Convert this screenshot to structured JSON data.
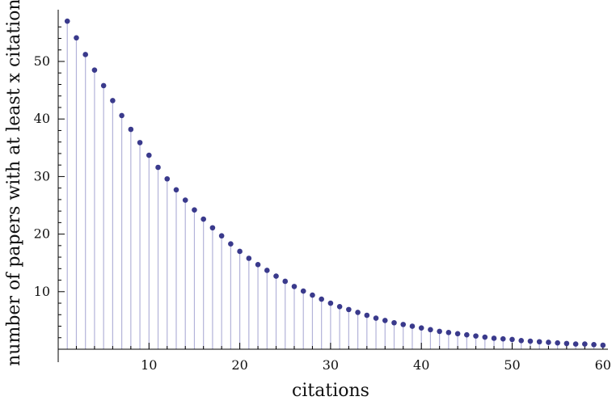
{
  "chart_data": {
    "type": "scatter",
    "style": "stem plot (filled points with vertical drop lines to the x-axis)",
    "title": "",
    "xlabel": "citations",
    "ylabel": "number of papers with at least x citations",
    "xlim": [
      0,
      60
    ],
    "ylim": [
      0,
      58
    ],
    "x_ticks": [
      10,
      20,
      30,
      40,
      50,
      60
    ],
    "y_ticks": [
      10,
      20,
      30,
      40,
      50
    ],
    "grid": false,
    "legend": "none",
    "colors": {
      "point": "#3a3a8c",
      "stem": "#b3b3d9",
      "axis": "#000000"
    },
    "series": [
      {
        "x": [
          1,
          2,
          3,
          4,
          5,
          6,
          7,
          8,
          9,
          10,
          11,
          12,
          13,
          14,
          15,
          16,
          17,
          18,
          19,
          20,
          21,
          22,
          23,
          24,
          25,
          26,
          27,
          28,
          29,
          30,
          31,
          32,
          33,
          34,
          35,
          36,
          37,
          38,
          39,
          40,
          41,
          42,
          43,
          44,
          45,
          46,
          47,
          48,
          49,
          50,
          51,
          52,
          53,
          54,
          55,
          56,
          57,
          58,
          59,
          60
        ],
        "y": [
          57.0,
          54.1,
          51.2,
          48.5,
          45.8,
          43.2,
          40.6,
          38.2,
          35.9,
          33.7,
          31.6,
          29.6,
          27.7,
          25.9,
          24.2,
          22.6,
          21.1,
          19.7,
          18.3,
          17.0,
          15.8,
          14.7,
          13.7,
          12.7,
          11.8,
          10.9,
          10.1,
          9.4,
          8.7,
          8.0,
          7.4,
          6.9,
          6.4,
          5.9,
          5.4,
          5.0,
          4.6,
          4.3,
          4.0,
          3.7,
          3.4,
          3.1,
          2.9,
          2.7,
          2.5,
          2.3,
          2.1,
          1.9,
          1.8,
          1.7,
          1.5,
          1.4,
          1.3,
          1.2,
          1.1,
          1.0,
          0.9,
          0.9,
          0.8,
          0.7
        ]
      }
    ]
  }
}
